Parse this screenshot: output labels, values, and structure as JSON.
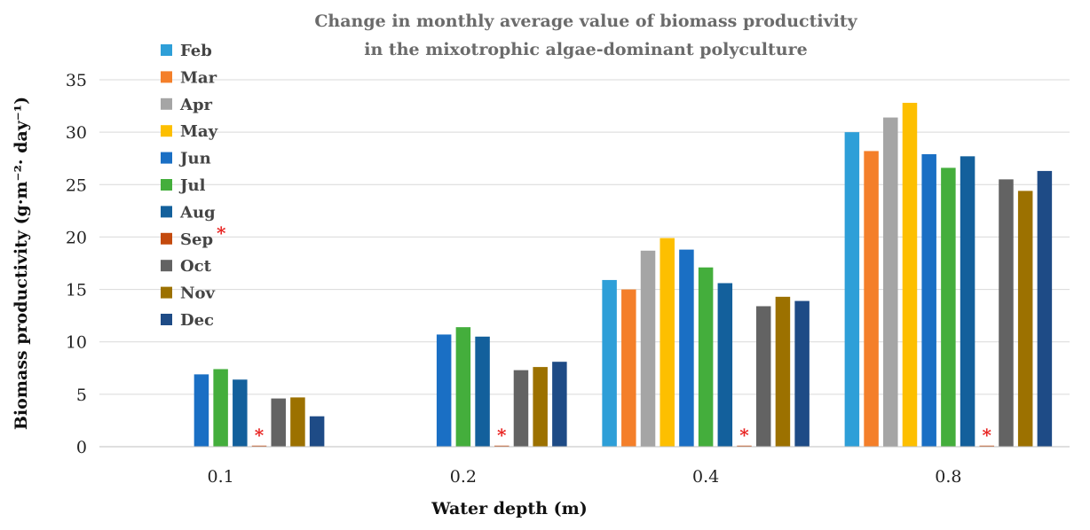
{
  "chart_data": {
    "type": "bar",
    "title": [
      "Change in monthly average value of biomass productivity",
      "in the mixotrophic  algae-dominant polyculture"
    ],
    "xlabel": "Water depth (m)",
    "ylabel": "Biomass productivity  (g·m⁻²· day⁻¹)",
    "categories": [
      "0.1",
      "0.2",
      "0.4",
      "0.8"
    ],
    "ylim": [
      0,
      35
    ],
    "yticks": [
      0,
      5,
      10,
      15,
      20,
      25,
      30,
      35
    ],
    "grid": true,
    "legend_position": "top-left",
    "series": [
      {
        "name": "Feb",
        "color": "#2e9fd8",
        "values": [
          null,
          null,
          15.9,
          30.0
        ]
      },
      {
        "name": "Mar",
        "color": "#f47f2a",
        "values": [
          null,
          null,
          15.0,
          28.2
        ]
      },
      {
        "name": "Apr",
        "color": "#a5a5a5",
        "values": [
          null,
          null,
          18.7,
          31.4
        ]
      },
      {
        "name": "May",
        "color": "#fdbf00",
        "values": [
          null,
          null,
          19.9,
          32.8
        ]
      },
      {
        "name": "Jun",
        "color": "#1a6fc4",
        "values": [
          6.9,
          10.7,
          18.8,
          27.9
        ]
      },
      {
        "name": "Jul",
        "color": "#44ae3c",
        "values": [
          7.4,
          11.4,
          17.1,
          26.6
        ]
      },
      {
        "name": "Aug",
        "color": "#13609c",
        "values": [
          6.4,
          10.5,
          15.6,
          27.7
        ]
      },
      {
        "name": "Sep",
        "color": "#c44a0e",
        "values": [
          0.1,
          0.1,
          0.1,
          0.1
        ],
        "marker": "*"
      },
      {
        "name": "Oct",
        "color": "#636363",
        "values": [
          4.6,
          7.3,
          13.4,
          25.5
        ]
      },
      {
        "name": "Nov",
        "color": "#9c7100",
        "values": [
          4.7,
          7.6,
          14.3,
          24.4
        ]
      },
      {
        "name": "Dec",
        "color": "#1e4b86",
        "values": [
          2.9,
          8.1,
          13.9,
          26.3
        ]
      }
    ],
    "annotations": [
      {
        "text": "*",
        "series": "Sep",
        "color": "#e8211f"
      }
    ]
  }
}
